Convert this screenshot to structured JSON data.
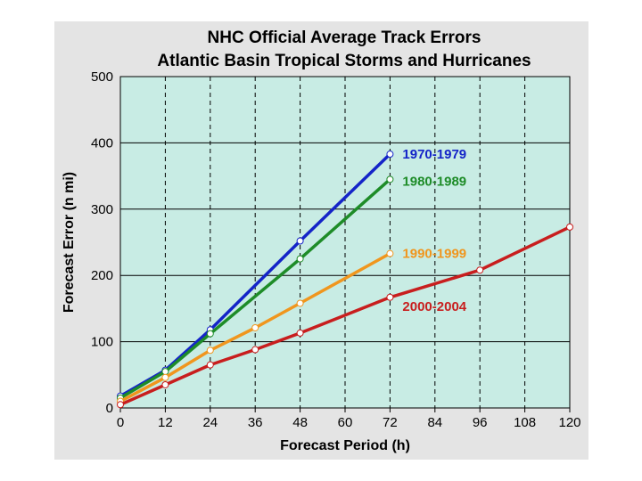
{
  "chart_data": {
    "type": "line",
    "title": "NHC Official Average Track Errors",
    "subtitle": "Atlantic Basin Tropical Storms and Hurricanes",
    "xlabel": "Forecast Period (h)",
    "ylabel": "Forecast Error (n mi)",
    "xlim": [
      0,
      120
    ],
    "ylim": [
      0,
      500
    ],
    "xticks": [
      "0",
      "12",
      "24",
      "36",
      "48",
      "60",
      "72",
      "84",
      "96",
      "108",
      "120"
    ],
    "yticks": [
      "0",
      "100",
      "200",
      "300",
      "400",
      "500"
    ],
    "grid": true,
    "legend": "inline labels right of series ends",
    "background": "#c8ece4",
    "series": [
      {
        "name": "1970-1979",
        "color": "#1424c8",
        "x": [
          0,
          12,
          24,
          48,
          72
        ],
        "y": [
          18,
          57,
          118,
          252,
          383
        ]
      },
      {
        "name": "1980-1989",
        "color": "#1e8c28",
        "x": [
          0,
          12,
          24,
          48,
          72
        ],
        "y": [
          15,
          55,
          112,
          225,
          345
        ]
      },
      {
        "name": "1990-1999",
        "color": "#f0961e",
        "x": [
          0,
          12,
          24,
          36,
          48,
          72
        ],
        "y": [
          10,
          46,
          87,
          121,
          158,
          233
        ]
      },
      {
        "name": "2000-2004",
        "color": "#c81e1e",
        "x": [
          0,
          12,
          24,
          36,
          48,
          72,
          96,
          120
        ],
        "y": [
          5,
          35,
          65,
          88,
          113,
          167,
          208,
          273
        ]
      }
    ]
  }
}
